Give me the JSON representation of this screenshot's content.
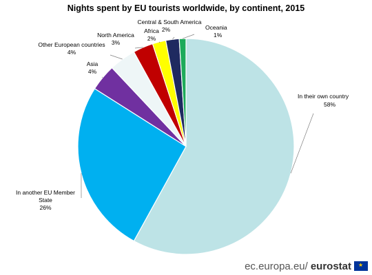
{
  "chart_data": {
    "type": "pie",
    "title": "Nights spent by EU tourists worldwide, by continent, 2015",
    "slices": [
      {
        "label": "In their own country",
        "value": 58,
        "value_label": "58%",
        "color": "#bde3e6"
      },
      {
        "label": "In another EU Member State",
        "value": 26,
        "value_label": "26%",
        "color": "#00b0f0"
      },
      {
        "label": "Asia",
        "value": 4,
        "value_label": "4%",
        "color": "#7030a0"
      },
      {
        "label": "Other European countries",
        "value": 4,
        "value_label": "4%",
        "color": "#eef6f7"
      },
      {
        "label": "North America",
        "value": 3,
        "value_label": "3%",
        "color": "#c00000"
      },
      {
        "label": "Africa",
        "value": 2,
        "value_label": "2%",
        "color": "#ffff00"
      },
      {
        "label": "Central & South America",
        "value": 2,
        "value_label": "2%",
        "color": "#1f2a60"
      },
      {
        "label": "Oceania",
        "value": 1,
        "value_label": "1%",
        "color": "#1daa5a"
      }
    ]
  },
  "footer": {
    "site": "ec.europa.eu/",
    "brand": "eurostat"
  }
}
